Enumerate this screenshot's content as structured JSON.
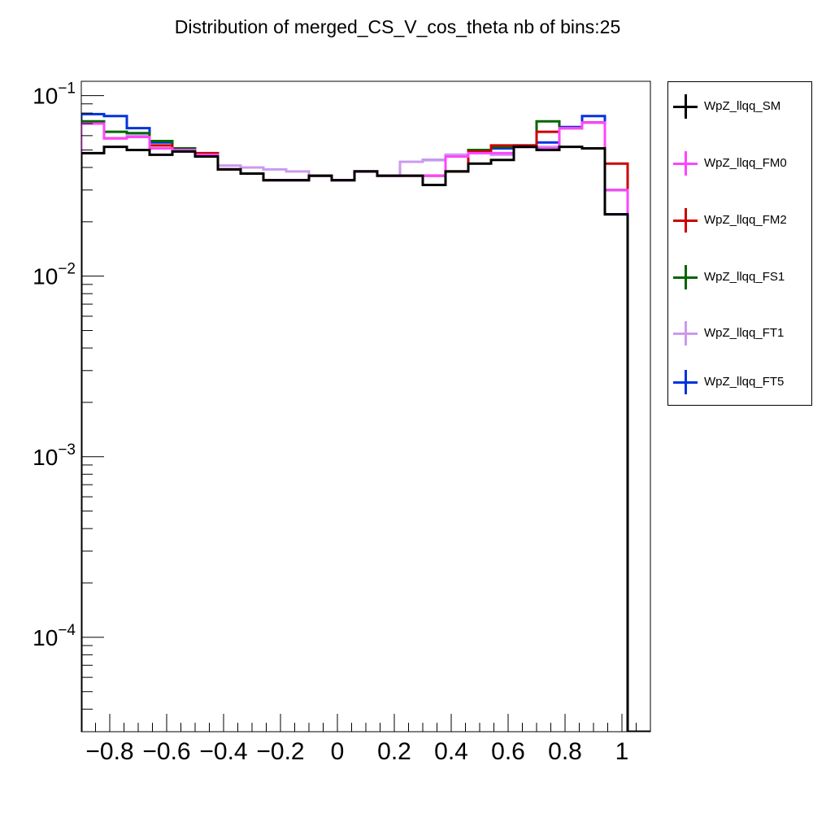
{
  "chart_data": {
    "type": "line",
    "title": "Distribution of merged_CS_V_cos_theta nb of bins:25",
    "xlabel": "",
    "ylabel": "",
    "xlim": [
      -0.9,
      1.1
    ],
    "ylim": [
      3e-05,
      0.12
    ],
    "yscale": "log",
    "grid": false,
    "legend_position": "right",
    "bin_edges": [
      -0.9,
      -0.82,
      -0.74,
      -0.66,
      -0.58,
      -0.5,
      -0.42,
      -0.34,
      -0.26,
      -0.18,
      -0.1,
      -0.02,
      0.06,
      0.14,
      0.22,
      0.3,
      0.38,
      0.46,
      0.54,
      0.62,
      0.7,
      0.78,
      0.86,
      0.94,
      1.02,
      1.1
    ],
    "x_ticks": [
      {
        "value": -0.8,
        "label": "−0.8"
      },
      {
        "value": -0.6,
        "label": "−0.6"
      },
      {
        "value": -0.4,
        "label": "−0.4"
      },
      {
        "value": -0.2,
        "label": "−0.2"
      },
      {
        "value": 0,
        "label": "0"
      },
      {
        "value": 0.2,
        "label": "0.2"
      },
      {
        "value": 0.4,
        "label": "0.4"
      },
      {
        "value": 0.6,
        "label": "0.6"
      },
      {
        "value": 0.8,
        "label": "0.8"
      },
      {
        "value": 1,
        "label": "1"
      }
    ],
    "y_ticks": [
      {
        "value": 0.0001,
        "base": "10",
        "exp": "−4"
      },
      {
        "value": 0.001,
        "base": "10",
        "exp": "−3"
      },
      {
        "value": 0.01,
        "base": "10",
        "exp": "−2"
      },
      {
        "value": 0.1,
        "base": "10",
        "exp": "−1"
      }
    ],
    "series": [
      {
        "name": "WpZ_llqq_FT5",
        "color": "#0033dd",
        "values": [
          0.079,
          0.077,
          0.066,
          0.055,
          0.05,
          0.046,
          0.039,
          0.037,
          0.034,
          0.034,
          0.036,
          0.034,
          0.038,
          0.036,
          0.043,
          0.044,
          0.047,
          0.05,
          0.051,
          0.053,
          0.055,
          0.067,
          0.077,
          0.022,
          3e-05
        ]
      },
      {
        "name": "WpZ_llqq_FT1",
        "color": "#cc99ee",
        "values": [
          0.07,
          0.058,
          0.06,
          0.051,
          0.05,
          0.047,
          0.041,
          0.04,
          0.039,
          0.038,
          0.036,
          0.034,
          0.038,
          0.036,
          0.043,
          0.044,
          0.047,
          0.049,
          0.047,
          0.052,
          0.052,
          0.066,
          0.071,
          0.03,
          3e-05
        ]
      },
      {
        "name": "WpZ_llqq_FS1",
        "color": "#006600",
        "values": [
          0.072,
          0.063,
          0.062,
          0.056,
          0.051,
          0.047,
          0.039,
          0.037,
          0.034,
          0.034,
          0.036,
          0.034,
          0.038,
          0.036,
          0.036,
          0.036,
          0.038,
          0.05,
          0.052,
          0.052,
          0.072,
          0.066,
          0.071,
          0.03,
          3e-05
        ]
      },
      {
        "name": "WpZ_llqq_FM2",
        "color": "#cc0000",
        "values": [
          0.07,
          0.058,
          0.059,
          0.053,
          0.05,
          0.048,
          0.039,
          0.037,
          0.034,
          0.034,
          0.036,
          0.034,
          0.038,
          0.036,
          0.036,
          0.036,
          0.038,
          0.049,
          0.053,
          0.053,
          0.063,
          0.066,
          0.071,
          0.042,
          3e-05
        ]
      },
      {
        "name": "WpZ_llqq_FM0",
        "color": "#ff44ff",
        "values": [
          0.07,
          0.058,
          0.059,
          0.051,
          0.05,
          0.047,
          0.039,
          0.037,
          0.034,
          0.034,
          0.036,
          0.034,
          0.038,
          0.036,
          0.036,
          0.036,
          0.046,
          0.048,
          0.048,
          0.052,
          0.051,
          0.066,
          0.071,
          0.03,
          3e-05
        ]
      },
      {
        "name": "WpZ_llqq_SM",
        "color": "#000000",
        "values": [
          0.048,
          0.052,
          0.05,
          0.047,
          0.049,
          0.046,
          0.039,
          0.037,
          0.034,
          0.034,
          0.036,
          0.034,
          0.038,
          0.036,
          0.036,
          0.032,
          0.038,
          0.042,
          0.044,
          0.052,
          0.05,
          0.052,
          0.051,
          0.022,
          3e-05
        ]
      }
    ],
    "legend": [
      {
        "name": "WpZ_llqq_SM",
        "color": "#000000"
      },
      {
        "name": "WpZ_llqq_FM0",
        "color": "#ff44ff"
      },
      {
        "name": "WpZ_llqq_FM2",
        "color": "#cc0000"
      },
      {
        "name": "WpZ_llqq_FS1",
        "color": "#006600"
      },
      {
        "name": "WpZ_llqq_FT1",
        "color": "#cc99ee"
      },
      {
        "name": "WpZ_llqq_FT5",
        "color": "#0033dd"
      }
    ]
  }
}
